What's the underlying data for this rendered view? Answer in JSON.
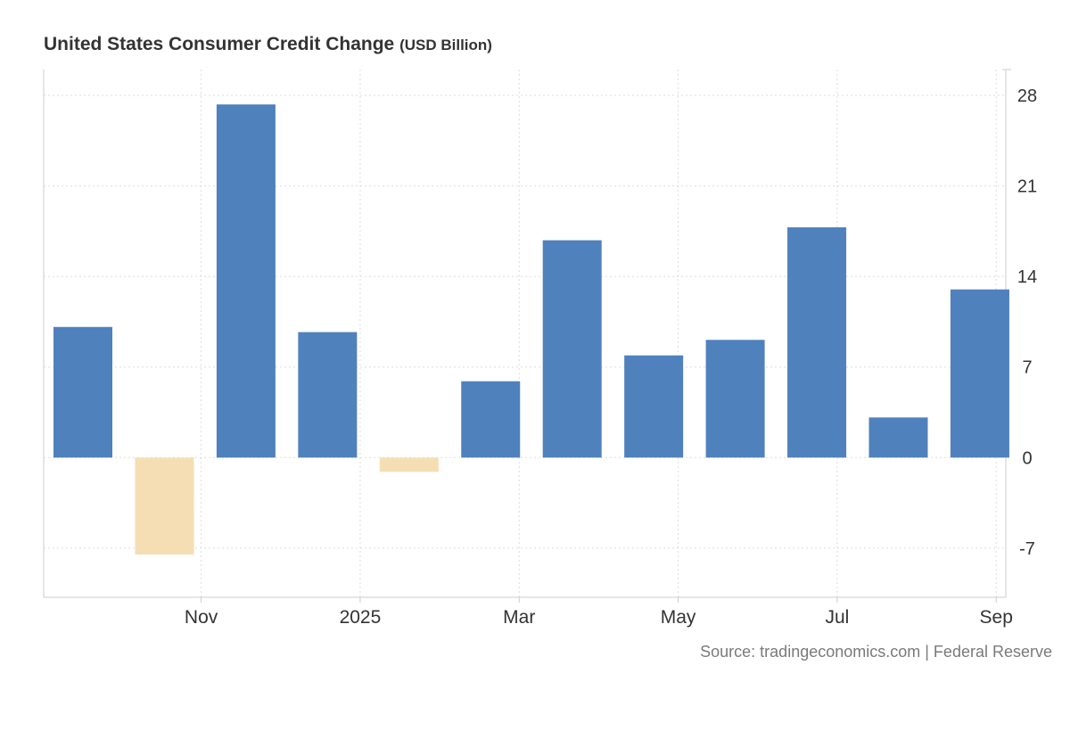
{
  "chart_data": {
    "type": "bar",
    "title": "United States Consumer Credit Change",
    "unit": "(USD Billion)",
    "source": "Source: tradingeconomics.com | Federal Reserve",
    "periods": [
      "2024-10",
      "2024-11",
      "2024-12",
      "2025-01",
      "2025-02",
      "2025-03",
      "2025-04",
      "2025-05",
      "2025-06",
      "2025-07",
      "2025-08",
      "2025-09"
    ],
    "values": [
      10.1,
      -7.5,
      27.3,
      9.7,
      -1.1,
      5.9,
      16.8,
      7.9,
      9.1,
      17.8,
      3.1,
      13.0
    ],
    "x_ticks": [
      {
        "label": "Nov",
        "period_index": 1.45
      },
      {
        "label": "2025",
        "period_index": 3.4
      },
      {
        "label": "Mar",
        "period_index": 5.35
      },
      {
        "label": "May",
        "period_index": 7.3
      },
      {
        "label": "Jul",
        "period_index": 9.25
      },
      {
        "label": "Sep",
        "period_index": 11.2
      }
    ],
    "y_ticks": [
      -7,
      0,
      7,
      14,
      21,
      28
    ],
    "ylim": [
      -10.8,
      30
    ],
    "grid": true,
    "positive_color": "#4f81bd",
    "negative_color": "#f5deb3",
    "axis_color": "#cccccc",
    "grid_color": "#dddddd",
    "tick_label_color": "#333333"
  }
}
